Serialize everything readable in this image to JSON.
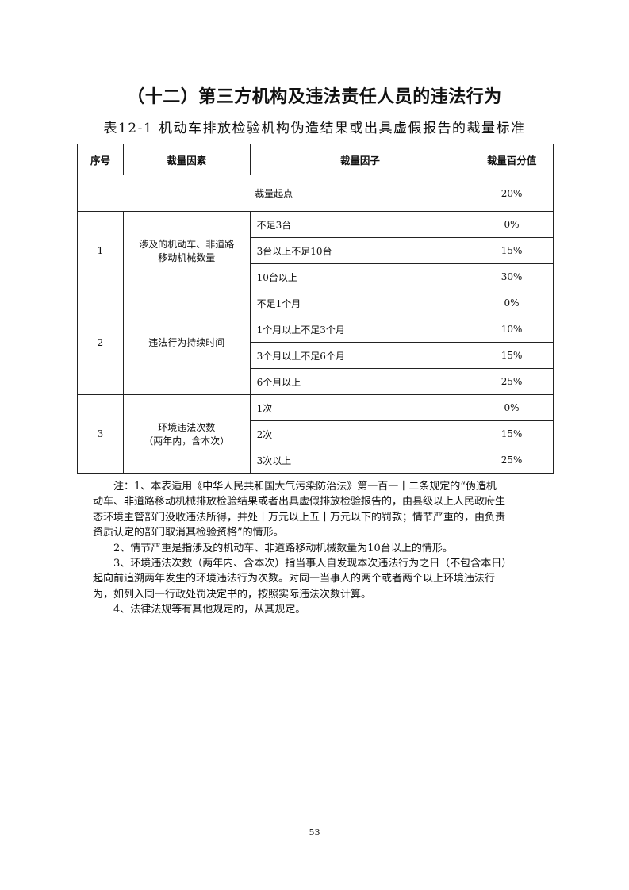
{
  "title": "（十二）第三方机构及违法责任人员的违法行为",
  "caption": "表12-1 机动车排放检验机构伪造结果或出具虚假报告的裁量标准",
  "table": {
    "headers": [
      "序号",
      "裁量因素",
      "裁量因子",
      "裁量百分值"
    ],
    "start": {
      "label": "裁量起点",
      "value": "20%"
    },
    "groups": [
      {
        "no": "1",
        "factor_lines": [
          "涉及的机动车、非道路",
          "移动机械数量"
        ],
        "rows": [
          {
            "item": "不足3台",
            "value": "0%"
          },
          {
            "item": "3台以上不足10台",
            "value": "15%"
          },
          {
            "item": "10台以上",
            "value": "30%"
          }
        ]
      },
      {
        "no": "2",
        "factor_lines": [
          "违法行为持续时间"
        ],
        "rows": [
          {
            "item": "不足1个月",
            "value": "0%"
          },
          {
            "item": "1个月以上不足3个月",
            "value": "10%"
          },
          {
            "item": "3个月以上不足6个月",
            "value": "15%"
          },
          {
            "item": "6个月以上",
            "value": "25%"
          }
        ]
      },
      {
        "no": "3",
        "factor_lines": [
          "环境违法次数",
          "（两年内，含本次）"
        ],
        "rows": [
          {
            "item": "1次",
            "value": "0%"
          },
          {
            "item": "2次",
            "value": "15%"
          },
          {
            "item": "3次以上",
            "value": "25%"
          }
        ]
      }
    ]
  },
  "notes": [
    [
      "注：1、本表适用《中华人民共和国大气污染防治法》第一百一十二条规定的“伪造机",
      "动车、非道路移动机械排放检验结果或者出具虚假排放检验报告的，由县级以上人民政府生",
      "态环境主管部门没收违法所得，并处十万元以上五十万元以下的罚款；情节严重的，由负责",
      "资质认定的部门取消其检验资格”的情形。"
    ],
    [
      "2、情节严重是指涉及的机动车、非道路移动机械数量为10台以上的情形。"
    ],
    [
      "3、环境违法次数（两年内、含本次）指当事人自发现本次违法行为之日（不包含本日）",
      "起向前追溯两年发生的环境违法行为次数。对同一当事人的两个或者两个以上环境违法行",
      "为，如列入同一行政处罚决定书的，按照实际违法次数计算。"
    ],
    [
      "4、法律法规等有其他规定的，从其规定。"
    ]
  ],
  "page_number": "53"
}
